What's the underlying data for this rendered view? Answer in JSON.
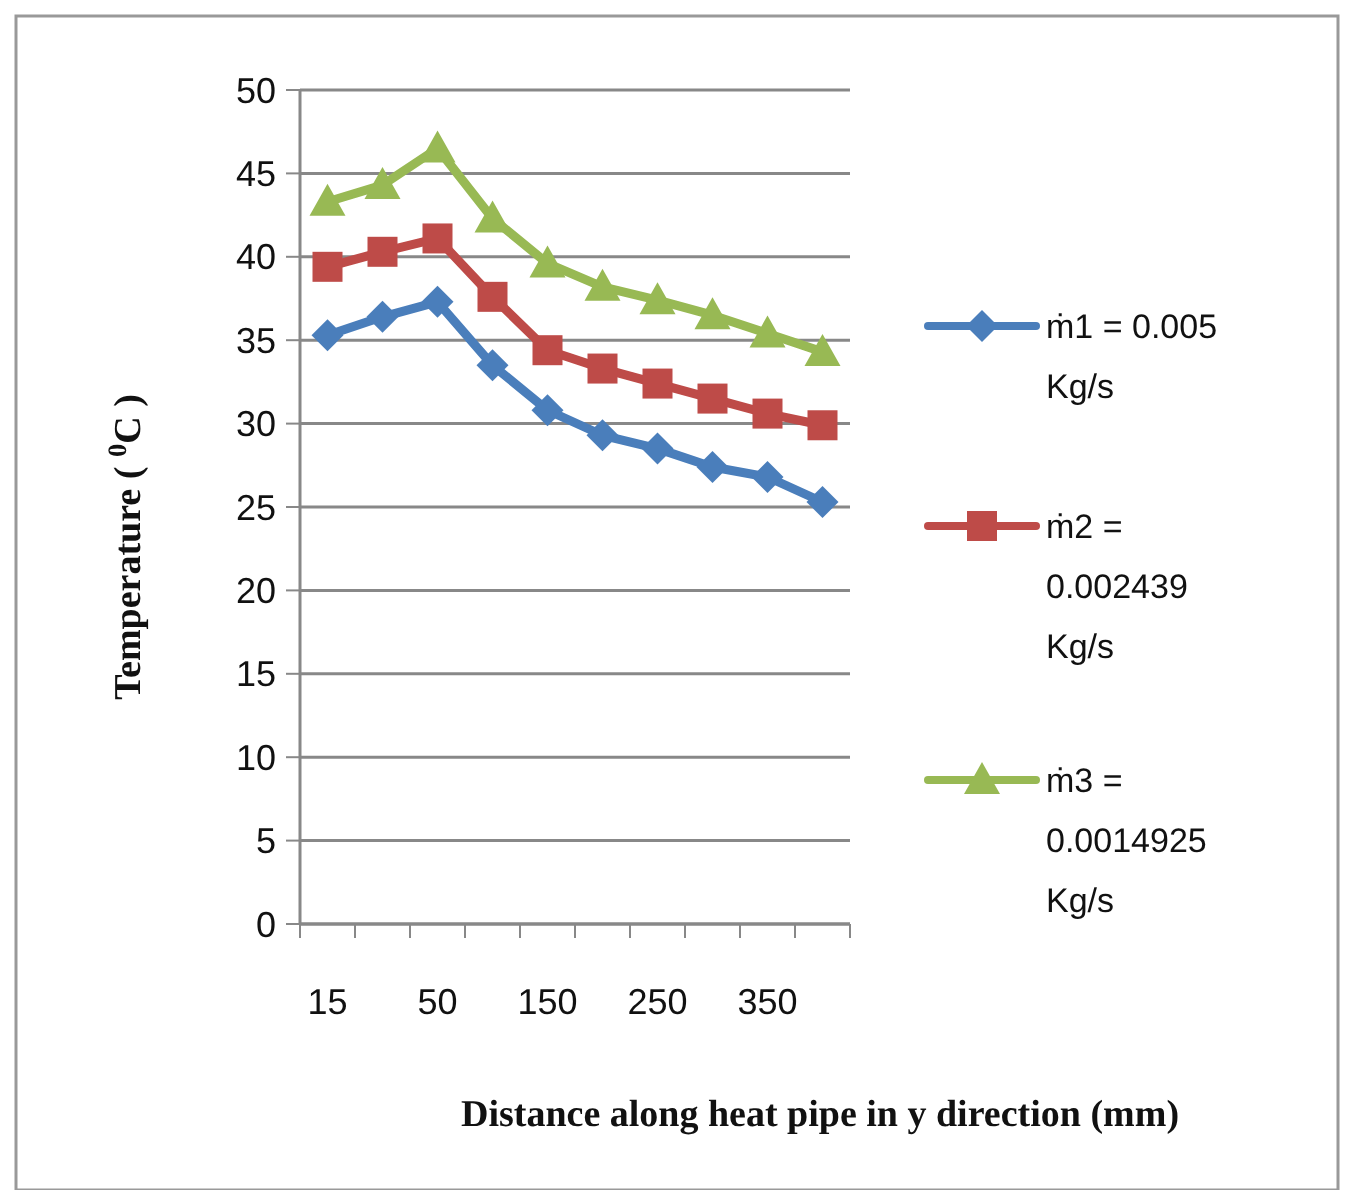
{
  "chart_data": {
    "type": "line",
    "xlabel": "Distance along heat pipe in y direction (mm)",
    "ylabel": "Temperature ( $^{0}$C )",
    "categories": [
      "15",
      null,
      "50",
      null,
      "150",
      null,
      "250",
      null,
      "350",
      null
    ],
    "ylim": [
      0,
      50
    ],
    "yticks": [
      0,
      5,
      10,
      15,
      20,
      25,
      30,
      35,
      40,
      45,
      50
    ],
    "grid": "y",
    "legend": "right",
    "series": [
      {
        "name": "ṁ1 = 0.005 Kg/s",
        "color": "#4a7ebb",
        "marker": "diamond",
        "values": [
          35.3,
          36.4,
          37.3,
          33.5,
          30.8,
          29.3,
          28.5,
          27.4,
          26.8,
          25.3
        ]
      },
      {
        "name": "ṁ2 = 0.002439 Kg/s",
        "color": "#be4b48",
        "marker": "square",
        "values": [
          39.4,
          40.3,
          41.1,
          37.6,
          34.4,
          33.3,
          32.4,
          31.5,
          30.6,
          29.9
        ]
      },
      {
        "name": "ṁ3 = 0.0014925 Kg/s",
        "color": "#98b954",
        "marker": "triangle",
        "values": [
          43.3,
          44.3,
          46.5,
          42.3,
          39.6,
          38.2,
          37.4,
          36.5,
          35.4,
          34.3
        ]
      }
    ]
  }
}
